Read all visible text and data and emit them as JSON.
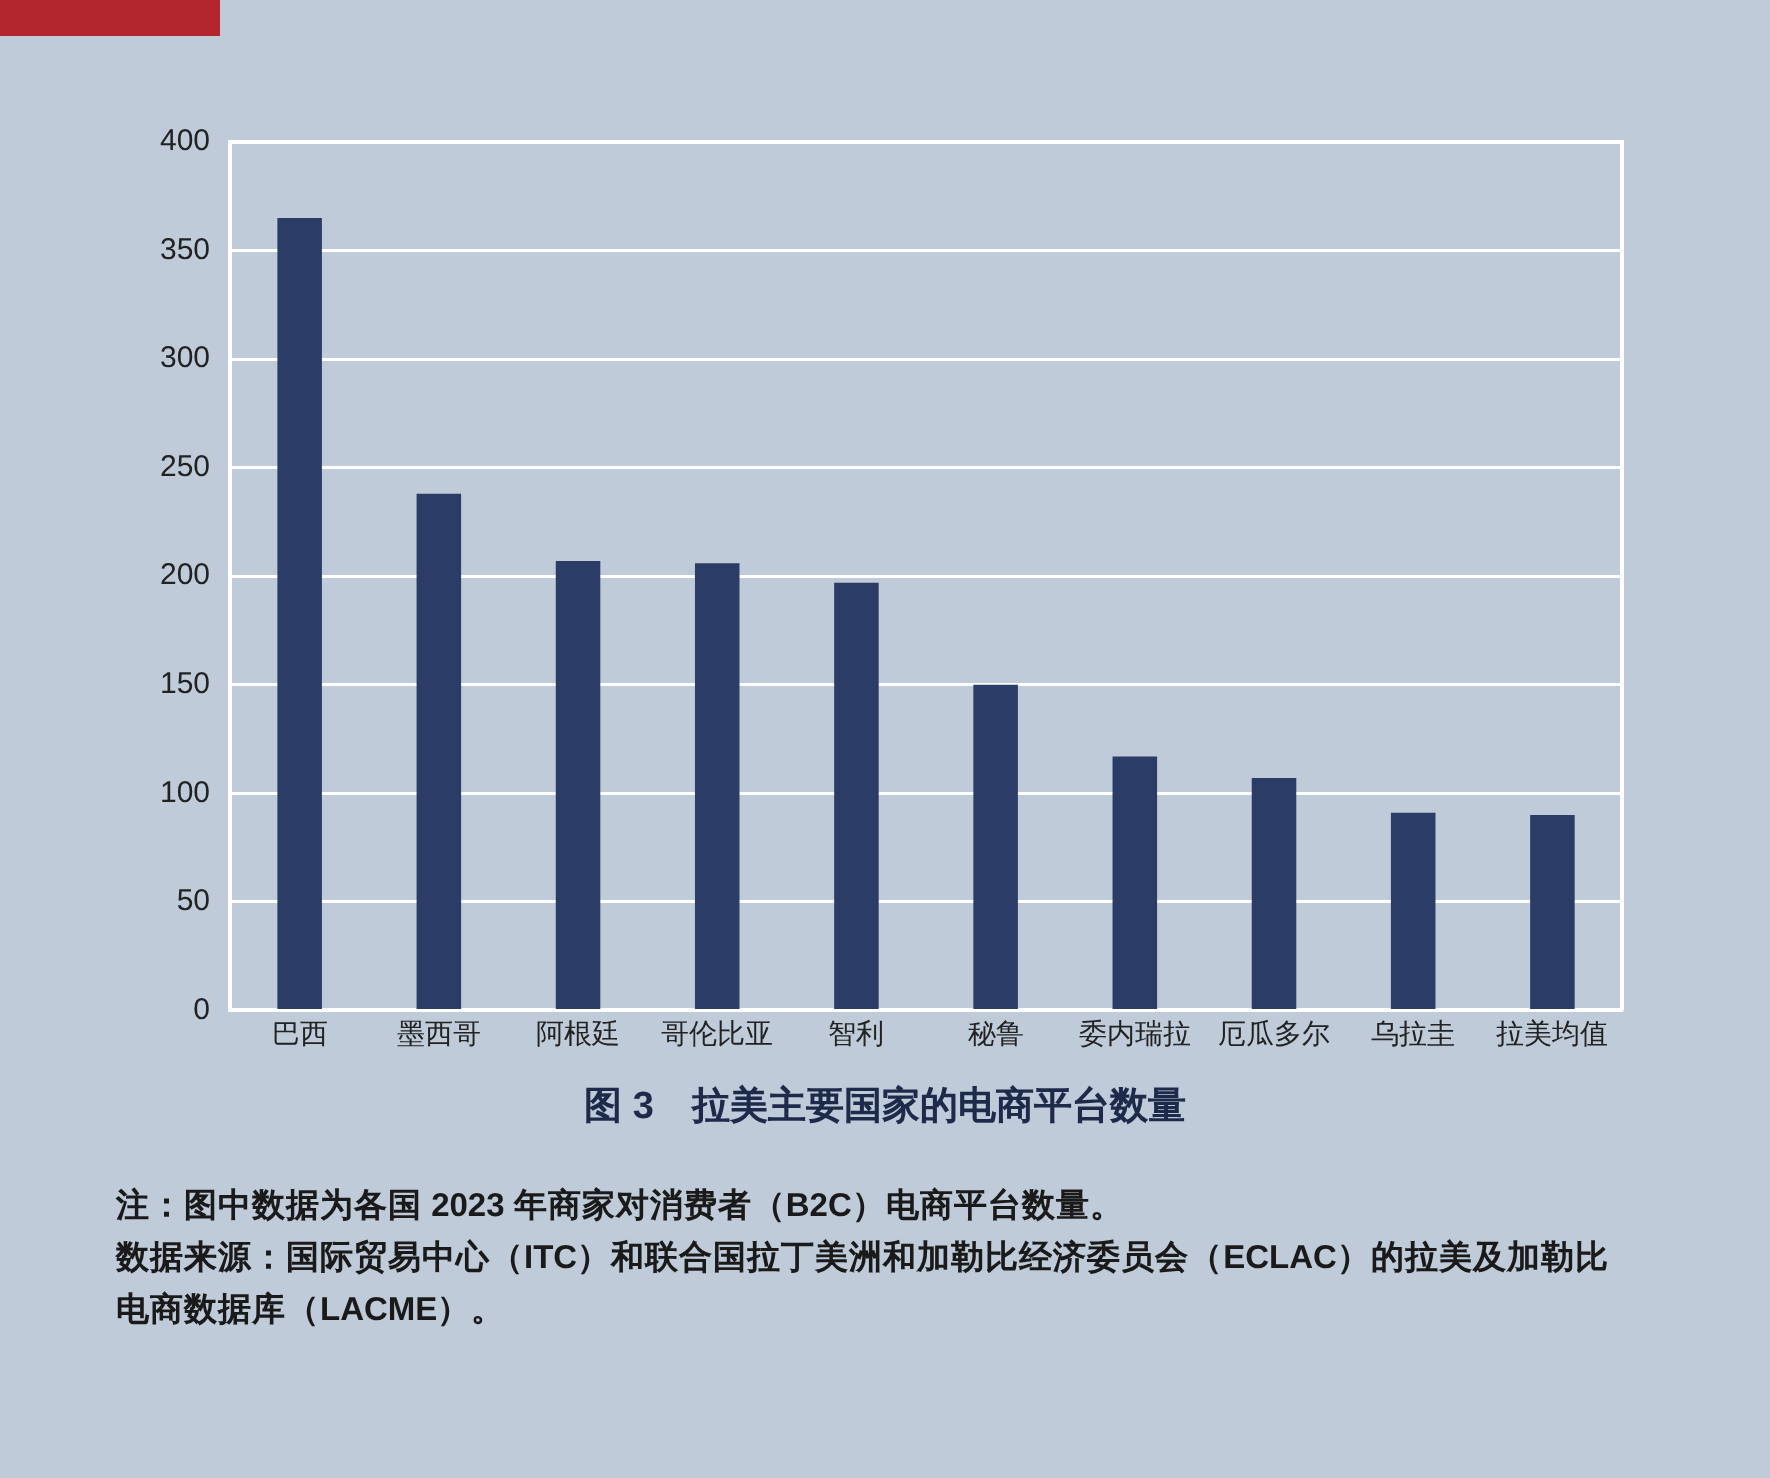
{
  "chart_data": {
    "type": "bar",
    "title": "图 3　拉美主要国家的电商平台数量",
    "categories": [
      "巴西",
      "墨西哥",
      "阿根廷",
      "哥伦比亚",
      "智利",
      "秘鲁",
      "委内瑞拉",
      "厄瓜多尔",
      "乌拉圭",
      "拉美均值"
    ],
    "values": [
      365,
      238,
      207,
      206,
      197,
      150,
      117,
      107,
      91,
      90
    ],
    "color": "#2b3d67",
    "ylim": [
      0,
      400
    ],
    "yticks": [
      0,
      50,
      100,
      150,
      200,
      250,
      300,
      350,
      400
    ],
    "grid": "y",
    "legend": false,
    "annotations": [
      "注：图中数据为各国 2023 年商家对消费者（B2C）电商平台数量。",
      "数据来源：国际贸易中心（ITC）和联合国拉丁美洲和加勒比经济委员会（ECLAC）的拉美及加勒比电商数据库（LACME）。"
    ]
  }
}
